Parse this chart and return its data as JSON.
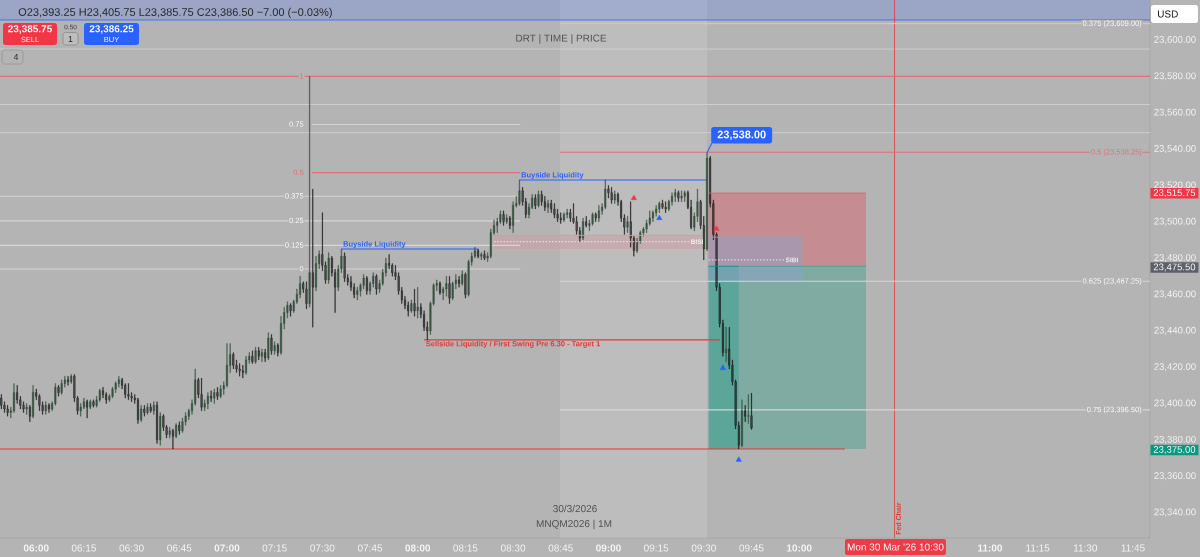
{
  "chart_data": {
    "type": "candlestick",
    "x": [
      5.8167,
      5.8333,
      5.85,
      5.8667,
      5.8833,
      5.9,
      5.9167,
      5.9333,
      5.95,
      5.9667,
      5.9833,
      6,
      6.0167,
      6.0333,
      6.05,
      6.0667,
      6.0833,
      6.1,
      6.1167,
      6.1333,
      6.15,
      6.1667,
      6.1833,
      6.2,
      6.2167,
      6.2333,
      6.25,
      6.2667,
      6.2833,
      6.3,
      6.3167,
      6.3333,
      6.35,
      6.3667,
      6.3833,
      6.4,
      6.4167,
      6.4333,
      6.45,
      6.4667,
      6.4833,
      6.5,
      6.5167,
      6.5333,
      6.55,
      6.5667,
      6.5833,
      6.6,
      6.6167,
      6.6333,
      6.65,
      6.6667,
      6.6833,
      6.7,
      6.7167,
      6.7333,
      6.75,
      6.7667,
      6.7833,
      6.8,
      6.8167,
      6.8333,
      6.85,
      6.8667,
      6.8833,
      6.9,
      6.9167,
      6.9333,
      6.95,
      6.9667,
      6.9833,
      7,
      7.0167,
      7.0333,
      7.05,
      7.0667,
      7.0833,
      7.1,
      7.1167,
      7.1333,
      7.15,
      7.1667,
      7.1833,
      7.2,
      7.2167,
      7.2333,
      7.25,
      7.2667,
      7.2833,
      7.3,
      7.3167,
      7.3333,
      7.35,
      7.3667,
      7.3833,
      7.4,
      7.4167,
      7.4333,
      7.45,
      7.4667,
      7.4833,
      7.5,
      7.5167,
      7.5333,
      7.55,
      7.5667,
      7.5833,
      7.6,
      7.6167,
      7.6333,
      7.65,
      7.6667,
      7.6833,
      7.7,
      7.7167,
      7.7333,
      7.75,
      7.7667,
      7.7833,
      7.8,
      7.8167,
      7.8333,
      7.85,
      7.8667,
      7.8833,
      7.9,
      7.9167,
      7.9333,
      7.95,
      7.9667,
      7.9833,
      8,
      8.0167,
      8.0333,
      8.05,
      8.0667,
      8.0833,
      8.1,
      8.1167,
      8.1333,
      8.15,
      8.1667,
      8.1833,
      8.2,
      8.2167,
      8.2333,
      8.25,
      8.2667,
      8.2833,
      8.3,
      8.3167,
      8.3333,
      8.35,
      8.3667,
      8.3833,
      8.4,
      8.4167,
      8.4333,
      8.45,
      8.4667,
      8.4833,
      8.5,
      8.5167,
      8.5333,
      8.55,
      8.5667,
      8.5833,
      8.6,
      8.6167,
      8.6333,
      8.65,
      8.6667,
      8.6833,
      8.7,
      8.7167,
      8.7333,
      8.75,
      8.7667,
      8.7833,
      8.8,
      8.8167,
      8.8333,
      8.85,
      8.8667,
      8.8833,
      8.9,
      8.9167,
      8.9333,
      8.95,
      8.9667,
      8.9833,
      9,
      9.0167,
      9.0333,
      9.05,
      9.0667,
      9.0833,
      9.1,
      9.1167,
      9.1333,
      9.15,
      9.1667,
      9.1833,
      9.2,
      9.2167,
      9.2333,
      9.25,
      9.2667,
      9.2833,
      9.3,
      9.3167,
      9.3333,
      9.35,
      9.3667,
      9.3833,
      9.4,
      9.4167,
      9.4333,
      9.45,
      9.4667,
      9.4833,
      9.5,
      9.5167,
      9.5333,
      9.55,
      9.5667,
      9.5833,
      9.6,
      9.6167,
      9.6333,
      9.65,
      9.6667,
      9.6833,
      9.7,
      9.7167,
      9.7333,
      9.75
    ],
    "ohlc": [
      [
        23403,
        23405,
        23397,
        23399
      ],
      [
        23399,
        23401,
        23395,
        23397
      ],
      [
        23397,
        23399,
        23393,
        23395
      ],
      [
        23395,
        23398,
        23392,
        23396
      ],
      [
        23396,
        23411,
        23395,
        23406
      ],
      [
        23406,
        23410,
        23400,
        23402
      ],
      [
        23402,
        23404,
        23397,
        23399
      ],
      [
        23399,
        23401,
        23395,
        23397
      ],
      [
        23397,
        23400,
        23394,
        23398
      ],
      [
        23398,
        23399,
        23390,
        23393
      ],
      [
        23393,
        23410,
        23392,
        23406
      ],
      [
        23406,
        23408,
        23402,
        23404
      ],
      [
        23404,
        23405,
        23396,
        23399
      ],
      [
        23399,
        23401,
        23394,
        23396
      ],
      [
        23396,
        23401,
        23394,
        23399
      ],
      [
        23399,
        23400,
        23395,
        23397
      ],
      [
        23397,
        23401,
        23396,
        23400
      ],
      [
        23400,
        23411,
        23399,
        23409
      ],
      [
        23409,
        23410,
        23404,
        23406
      ],
      [
        23406,
        23413,
        23405,
        23411
      ],
      [
        23411,
        23415,
        23409,
        23413
      ],
      [
        23413,
        23415,
        23410,
        23412
      ],
      [
        23412,
        23416,
        23411,
        23415
      ],
      [
        23415,
        23416,
        23401,
        23403
      ],
      [
        23403,
        23404,
        23394,
        23396
      ],
      [
        23396,
        23400,
        23393,
        23398
      ],
      [
        23398,
        23403,
        23397,
        23401
      ],
      [
        23401,
        23402,
        23392,
        23398
      ],
      [
        23398,
        23402,
        23397,
        23401
      ],
      [
        23401,
        23402,
        23398,
        23399
      ],
      [
        23399,
        23404,
        23398,
        23402
      ],
      [
        23402,
        23408,
        23401,
        23407
      ],
      [
        23407,
        23409,
        23403,
        23405
      ],
      [
        23405,
        23406,
        23400,
        23402
      ],
      [
        23402,
        23405,
        23401,
        23404
      ],
      [
        23404,
        23409,
        23403,
        23408
      ],
      [
        23408,
        23412,
        23406,
        23411
      ],
      [
        23411,
        23415,
        23409,
        23413
      ],
      [
        23413,
        23414,
        23408,
        23410
      ],
      [
        23410,
        23411,
        23403,
        23405
      ],
      [
        23405,
        23411,
        23402,
        23404
      ],
      [
        23404,
        23406,
        23401,
        23403
      ],
      [
        23403,
        23405,
        23400,
        23402
      ],
      [
        23402,
        23403,
        23389,
        23391
      ],
      [
        23391,
        23399,
        23390,
        23397
      ],
      [
        23397,
        23399,
        23393,
        23395
      ],
      [
        23395,
        23400,
        23394,
        23398
      ],
      [
        23398,
        23400,
        23395,
        23396
      ],
      [
        23396,
        23401,
        23394,
        23399
      ],
      [
        23399,
        23401,
        23378,
        23380
      ],
      [
        23380,
        23395,
        23377,
        23393
      ],
      [
        23393,
        23394,
        23385,
        23387
      ],
      [
        23387,
        23388,
        23381,
        23383
      ],
      [
        23383,
        23387,
        23381,
        23385
      ],
      [
        23385,
        23386,
        23375,
        23382
      ],
      [
        23382,
        23389,
        23381,
        23388
      ],
      [
        23388,
        23390,
        23383,
        23385
      ],
      [
        23385,
        23392,
        23384,
        23390
      ],
      [
        23390,
        23395,
        23388,
        23393
      ],
      [
        23393,
        23397,
        23391,
        23396
      ],
      [
        23396,
        23402,
        23394,
        23400
      ],
      [
        23400,
        23419,
        23399,
        23413
      ],
      [
        23413,
        23414,
        23403,
        23405
      ],
      [
        23405,
        23414,
        23396,
        23398
      ],
      [
        23398,
        23402,
        23396,
        23400
      ],
      [
        23400,
        23406,
        23397,
        23404
      ],
      [
        23404,
        23407,
        23401,
        23403
      ],
      [
        23403,
        23408,
        23400,
        23406
      ],
      [
        23406,
        23409,
        23402,
        23404
      ],
      [
        23404,
        23410,
        23403,
        23408
      ],
      [
        23408,
        23412,
        23405,
        23410
      ],
      [
        23410,
        23433,
        23409,
        23421
      ],
      [
        23421,
        23433,
        23417,
        23427
      ],
      [
        23427,
        23428,
        23419,
        23421
      ],
      [
        23421,
        23424,
        23417,
        23419
      ],
      [
        23419,
        23422,
        23415,
        23418
      ],
      [
        23418,
        23421,
        23414,
        23417
      ],
      [
        23417,
        23426,
        23416,
        23424
      ],
      [
        23424,
        23428,
        23422,
        23426
      ],
      [
        23426,
        23429,
        23422,
        23423
      ],
      [
        23423,
        23431,
        23422,
        23429
      ],
      [
        23429,
        23431,
        23424,
        23426
      ],
      [
        23426,
        23430,
        23423,
        23428
      ],
      [
        23428,
        23430,
        23423,
        23425
      ],
      [
        23425,
        23439,
        23424,
        23436
      ],
      [
        23436,
        23438,
        23427,
        23429
      ],
      [
        23429,
        23434,
        23427,
        23432
      ],
      [
        23432,
        23433,
        23426,
        23428
      ],
      [
        23428,
        23448,
        23427,
        23444
      ],
      [
        23444,
        23453,
        23441,
        23450
      ],
      [
        23450,
        23456,
        23447,
        23454
      ],
      [
        23454,
        23455,
        23448,
        23451
      ],
      [
        23451,
        23457,
        23450,
        23456
      ],
      [
        23456,
        23463,
        23455,
        23460
      ],
      [
        23460,
        23470,
        23458,
        23466
      ],
      [
        23466,
        23467,
        23461,
        23463
      ],
      [
        23463,
        23467,
        23452,
        23455
      ],
      [
        23455,
        23580,
        23453,
        23472
      ],
      [
        23472,
        23518,
        23442,
        23464
      ],
      [
        23464,
        23481,
        23462,
        23477
      ],
      [
        23477,
        23484,
        23474,
        23482
      ],
      [
        23482,
        23505,
        23473,
        23476
      ],
      [
        23476,
        23478,
        23466,
        23468
      ],
      [
        23468,
        23483,
        23466,
        23480
      ],
      [
        23480,
        23481,
        23470,
        23472
      ],
      [
        23472,
        23474,
        23450,
        23464
      ],
      [
        23464,
        23476,
        23462,
        23474
      ],
      [
        23474,
        23485,
        23472,
        23481
      ],
      [
        23481,
        23483,
        23467,
        23469
      ],
      [
        23469,
        23471,
        23465,
        23467
      ],
      [
        23467,
        23470,
        23462,
        23464
      ],
      [
        23464,
        23466,
        23458,
        23460
      ],
      [
        23460,
        23464,
        23457,
        23462
      ],
      [
        23462,
        23466,
        23459,
        23465
      ],
      [
        23465,
        23471,
        23463,
        23469
      ],
      [
        23469,
        23470,
        23460,
        23462
      ],
      [
        23462,
        23467,
        23460,
        23466
      ],
      [
        23466,
        23472,
        23464,
        23470
      ],
      [
        23470,
        23471,
        23460,
        23463
      ],
      [
        23463,
        23468,
        23461,
        23466
      ],
      [
        23466,
        23474,
        23465,
        23472
      ],
      [
        23472,
        23480,
        23470,
        23477
      ],
      [
        23477,
        23482,
        23474,
        23476
      ],
      [
        23476,
        23477,
        23470,
        23472
      ],
      [
        23472,
        23476,
        23468,
        23470
      ],
      [
        23470,
        23472,
        23460,
        23462
      ],
      [
        23462,
        23464,
        23455,
        23457
      ],
      [
        23457,
        23459,
        23452,
        23454
      ],
      [
        23454,
        23456,
        23448,
        23451
      ],
      [
        23451,
        23457,
        23450,
        23455
      ],
      [
        23455,
        23463,
        23448,
        23451
      ],
      [
        23451,
        23464,
        23447,
        23453
      ],
      [
        23453,
        23455,
        23447,
        23449
      ],
      [
        23449,
        23451,
        23440,
        23442
      ],
      [
        23442,
        23445,
        23435,
        23440
      ],
      [
        23440,
        23456,
        23438,
        23455
      ],
      [
        23455,
        23466,
        23454,
        23465
      ],
      [
        23465,
        23468,
        23462,
        23466
      ],
      [
        23466,
        23467,
        23460,
        23461
      ],
      [
        23461,
        23464,
        23457,
        23463
      ],
      [
        23463,
        23470,
        23459,
        23466
      ],
      [
        23466,
        23470,
        23455,
        23458
      ],
      [
        23458,
        23467,
        23457,
        23466
      ],
      [
        23466,
        23471,
        23463,
        23468
      ],
      [
        23468,
        23470,
        23464,
        23466
      ],
      [
        23466,
        23473,
        23465,
        23471
      ],
      [
        23471,
        23472,
        23458,
        23460
      ],
      [
        23460,
        23479,
        23459,
        23478
      ],
      [
        23478,
        23483,
        23476,
        23481
      ],
      [
        23481,
        23486,
        23480,
        23484
      ],
      [
        23484,
        23485,
        23480,
        23481
      ],
      [
        23481,
        23483,
        23479,
        23482
      ],
      [
        23482,
        23484,
        23479,
        23480
      ],
      [
        23480,
        23483,
        23478,
        23481
      ],
      [
        23481,
        23496,
        23480,
        23494
      ],
      [
        23494,
        23501,
        23493,
        23498
      ],
      [
        23498,
        23502,
        23494,
        23500
      ],
      [
        23500,
        23506,
        23499,
        23504
      ],
      [
        23504,
        23506,
        23498,
        23500
      ],
      [
        23500,
        23504,
        23499,
        23502
      ],
      [
        23502,
        23503,
        23496,
        23498
      ],
      [
        23498,
        23511,
        23494,
        23509
      ],
      [
        23509,
        23514,
        23508,
        23510
      ],
      [
        23510,
        23523,
        23509,
        23517
      ],
      [
        23517,
        23519,
        23509,
        23511
      ],
      [
        23511,
        23513,
        23502,
        23504
      ],
      [
        23504,
        23510,
        23502,
        23508
      ],
      [
        23508,
        23515,
        23507,
        23513
      ],
      [
        23513,
        23515,
        23507,
        23509
      ],
      [
        23509,
        23517,
        23508,
        23515
      ],
      [
        23515,
        23517,
        23509,
        23511
      ],
      [
        23511,
        23514,
        23506,
        23508
      ],
      [
        23508,
        23512,
        23505,
        23510
      ],
      [
        23510,
        23512,
        23505,
        23507
      ],
      [
        23507,
        23510,
        23502,
        23504
      ],
      [
        23504,
        23507,
        23500,
        23502
      ],
      [
        23502,
        23505,
        23499,
        23501
      ],
      [
        23501,
        23505,
        23500,
        23504
      ],
      [
        23504,
        23507,
        23502,
        23505
      ],
      [
        23505,
        23507,
        23500,
        23502
      ],
      [
        23502,
        23510,
        23499,
        23500
      ],
      [
        23500,
        23503,
        23493,
        23495
      ],
      [
        23495,
        23497,
        23489,
        23491
      ],
      [
        23491,
        23502,
        23490,
        23500
      ],
      [
        23500,
        23503,
        23497,
        23498
      ],
      [
        23498,
        23501,
        23495,
        23499
      ],
      [
        23499,
        23505,
        23498,
        23504
      ],
      [
        23504,
        23505,
        23500,
        23502
      ],
      [
        23502,
        23509,
        23500,
        23506
      ],
      [
        23506,
        23510,
        23504,
        23508
      ],
      [
        23508,
        23523,
        23507,
        23518
      ],
      [
        23518,
        23520,
        23513,
        23516
      ],
      [
        23516,
        23519,
        23510,
        23512
      ],
      [
        23512,
        23517,
        23510,
        23515
      ],
      [
        23515,
        23516,
        23509,
        23511
      ],
      [
        23511,
        23512,
        23500,
        23502
      ],
      [
        23502,
        23504,
        23493,
        23497
      ],
      [
        23497,
        23503,
        23494,
        23500
      ],
      [
        23500,
        23511,
        23486,
        23491
      ],
      [
        23491,
        23492,
        23481,
        23484
      ],
      [
        23484,
        23491,
        23483,
        23489
      ],
      [
        23489,
        23495,
        23488,
        23494
      ],
      [
        23494,
        23497,
        23492,
        23496
      ],
      [
        23496,
        23501,
        23494,
        23499
      ],
      [
        23499,
        23506,
        23498,
        23502
      ],
      [
        23502,
        23506,
        23500,
        23505
      ],
      [
        23505,
        23509,
        23503,
        23507
      ],
      [
        23507,
        23511,
        23505,
        23510
      ],
      [
        23510,
        23512,
        23507,
        23508
      ],
      [
        23508,
        23511,
        23505,
        23507
      ],
      [
        23507,
        23512,
        23506,
        23511
      ],
      [
        23511,
        23516,
        23509,
        23514
      ],
      [
        23514,
        23518,
        23511,
        23516
      ],
      [
        23516,
        23517,
        23511,
        23513
      ],
      [
        23513,
        23517,
        23511,
        23514
      ],
      [
        23514,
        23517,
        23511,
        23516
      ],
      [
        23516,
        23517,
        23507,
        23508
      ],
      [
        23508,
        23512,
        23496,
        23497
      ],
      [
        23497,
        23505,
        23495,
        23503
      ],
      [
        23503,
        23518,
        23500,
        23511
      ],
      [
        23511,
        23512,
        23496,
        23498
      ],
      [
        23498,
        23503,
        23479,
        23485
      ],
      [
        23485,
        23538,
        23484,
        23535
      ],
      [
        23535,
        23536,
        23508,
        23510
      ],
      [
        23510,
        23512,
        23490,
        23493
      ],
      [
        23493,
        23494,
        23462,
        23464
      ],
      [
        23464,
        23466,
        23442,
        23444
      ],
      [
        23444,
        23446,
        23426,
        23428
      ],
      [
        23428,
        23442,
        23423,
        23430
      ],
      [
        23430,
        23442,
        23419,
        23421
      ],
      [
        23421,
        23424,
        23410,
        23412
      ],
      [
        23412,
        23413,
        23386,
        23388
      ],
      [
        23388,
        23390,
        23375,
        23377
      ],
      [
        23377,
        23402,
        23376,
        23396
      ],
      [
        23396,
        23399,
        23390,
        23393
      ],
      [
        23393,
        23405,
        23389,
        23393.25
      ],
      [
        23393.25,
        23405.75,
        23385.75,
        23386.5
      ]
    ],
    "xlim": [
      5.81,
      11.839
    ],
    "ylim": [
      23326,
      23622
    ],
    "xticks": [
      {
        "value": 6,
        "label": "06:00"
      },
      {
        "value": 6.25,
        "label": "06:15"
      },
      {
        "value": 6.5,
        "label": "06:30"
      },
      {
        "value": 6.75,
        "label": "06:45"
      },
      {
        "value": 7,
        "label": "07:00"
      },
      {
        "value": 7.25,
        "label": "07:15"
      },
      {
        "value": 7.5,
        "label": "07:30"
      },
      {
        "value": 7.75,
        "label": "07:45"
      },
      {
        "value": 8,
        "label": "08:00"
      },
      {
        "value": 8.25,
        "label": "08:15"
      },
      {
        "value": 8.5,
        "label": "08:30"
      },
      {
        "value": 8.75,
        "label": "08:45"
      },
      {
        "value": 9,
        "label": "09:00"
      },
      {
        "value": 9.25,
        "label": "09:15"
      },
      {
        "value": 9.5,
        "label": "09:30"
      },
      {
        "value": 9.75,
        "label": "09:45"
      },
      {
        "value": 10,
        "label": "10:00"
      },
      {
        "value": 11,
        "label": "11:00"
      },
      {
        "value": 11.25,
        "label": "11:15"
      },
      {
        "value": 11.5,
        "label": "11:30"
      },
      {
        "value": 11.75,
        "label": "11:45"
      }
    ],
    "yticks": [
      {
        "value": 23340,
        "label": "23,340.00"
      },
      {
        "value": 23360,
        "label": "23,360.00"
      },
      {
        "value": 23380,
        "label": "23,380.00"
      },
      {
        "value": 23400,
        "label": "23,400.00"
      },
      {
        "value": 23420,
        "label": "23,420.00"
      },
      {
        "value": 23440,
        "label": "23,440.00"
      },
      {
        "value": 23460,
        "label": "23,460.00"
      },
      {
        "value": 23480,
        "label": "23,480.00"
      },
      {
        "value": 23500,
        "label": "23,500.00"
      },
      {
        "value": 23520,
        "label": "23,520.00"
      },
      {
        "value": 23540,
        "label": "23,540.00"
      },
      {
        "value": 23560,
        "label": "23,560.00"
      },
      {
        "value": 23580,
        "label": "23,580.00"
      },
      {
        "value": 23600,
        "label": "23,600.00"
      }
    ],
    "series": [
      {
        "type": "line",
        "color": "#d9727c",
        "x": [
          5.81,
          11.839
        ],
        "values": [
          23580,
          23580
        ]
      },
      {
        "type": "line",
        "color": "#d6d6d6",
        "x": [
          7.445,
          8.537
        ],
        "values": [
          23553.5,
          23553.5
        ]
      },
      {
        "type": "line",
        "color": "#d9727c",
        "x": [
          7.445,
          8.537
        ],
        "values": [
          23527,
          23527
        ]
      },
      {
        "type": "line",
        "color": "#d6d6d6",
        "x": [
          5.81,
          8.537
        ],
        "values": [
          23514,
          23514
        ]
      },
      {
        "type": "line",
        "color": "#d6d6d6",
        "x": [
          5.81,
          8.537
        ],
        "values": [
          23500.5,
          23500.5
        ]
      },
      {
        "type": "line",
        "color": "#d6d6d6",
        "x": [
          5.81,
          8.537
        ],
        "values": [
          23487,
          23487
        ]
      },
      {
        "type": "line",
        "color": "#d6d6d6",
        "x": [
          5.81,
          8.537
        ],
        "values": [
          23474,
          23474
        ]
      },
      {
        "type": "line",
        "color": "#d8c8a8",
        "x": [
          8.746,
          11.839
        ],
        "values": [
          23609,
          23609
        ]
      },
      {
        "type": "line",
        "color": "#d9727c",
        "x": [
          8.746,
          11.839
        ],
        "values": [
          23538.25,
          23538.25
        ]
      },
      {
        "type": "line",
        "color": "#d6d6d6",
        "x": [
          8.746,
          11.839
        ],
        "values": [
          23467.25,
          23467.25
        ]
      },
      {
        "type": "line",
        "color": "#d6d6d6",
        "x": [
          8.746,
          11.839
        ],
        "values": [
          23396.5,
          23396.5
        ]
      },
      {
        "type": "line",
        "name": "Buyside Liquidity",
        "color": "#2962ff",
        "x": [
          7.6,
          8.3167
        ],
        "values": [
          23485,
          23485
        ]
      },
      {
        "type": "line",
        "name": "Buyside Liquidity",
        "color": "#2962ff",
        "x": [
          8.5333,
          9.5167
        ],
        "values": [
          23523,
          23523
        ]
      },
      {
        "type": "line",
        "name": "Sellside Liquidity / First Swing Pre 6.30 - Target 1",
        "color": "#e53935",
        "x": [
          8.0333,
          9.5833
        ],
        "values": [
          23435,
          23435
        ]
      },
      {
        "type": "line",
        "color": "#e53935",
        "x": [
          5.81,
          10.24
        ],
        "values": [
          23375,
          23375
        ]
      },
      {
        "type": "line",
        "color": "#d6666e",
        "x": [
          9.525,
          10.35
        ],
        "values": [
          23515.75,
          23515.75
        ],
        "lower": [
          23475.5,
          23475.5
        ],
        "upper": [
          23515.75,
          23515.75
        ]
      },
      {
        "type": "line",
        "color": "#4aa292",
        "x": [
          9.6833,
          10.35
        ],
        "values": [
          23475.5,
          23475.5
        ],
        "lower": [
          23375,
          23375
        ],
        "upper": [
          23475.5,
          23475.5
        ]
      },
      {
        "type": "line",
        "color": "#02967e",
        "x": [
          9.525,
          9.6833
        ],
        "values": [
          23475.5,
          23475.5
        ],
        "lower": [
          23375,
          23375
        ],
        "upper": [
          23475.5,
          23475.5
        ]
      },
      {
        "type": "line",
        "color": "#d29ca2",
        "x": [
          8.4,
          9.49
        ],
        "values": [
          23492.5,
          23492.5
        ],
        "lower": [
          23485,
          23485
        ],
        "upper": [
          23492.5,
          23492.5
        ]
      },
      {
        "type": "line",
        "name": "BISI",
        "color": "#f2f2f2",
        "x": [
          8.4,
          9.4222
        ],
        "values": [
          23489,
          23489
        ],
        "line_style": "dotted"
      },
      {
        "type": "line",
        "color": "#8ba1c9",
        "x": [
          9.525,
          10.0167
        ],
        "values": [
          23491.5,
          23491.5
        ],
        "lower": [
          23466.75,
          23466.75
        ],
        "upper": [
          23491.5,
          23491.5
        ]
      },
      {
        "type": "line",
        "name": "SIBI",
        "color": "#f2f2f2",
        "x": [
          9.525,
          9.9202
        ],
        "values": [
          23479,
          23479
        ],
        "line_style": "dotted"
      },
      {
        "type": "scatter",
        "color": "#f23645",
        "marker": "triangle",
        "x": [
          9.1333,
          9.5667
        ],
        "values": [
          23513,
          23496
        ]
      },
      {
        "type": "scatter",
        "color": "#2962ff",
        "marker": "triangle",
        "x": [
          9.2667,
          9.6,
          9.6833
        ],
        "values": [
          23502,
          23419.5,
          23369
        ]
      }
    ],
    "bands": [
      {
        "axis": "x",
        "from": 8.746,
        "to": 9.5167,
        "color": "#d3d3d3"
      },
      {
        "axis": "y",
        "from": 23611,
        "to": 23622,
        "color": "#6287f1"
      }
    ],
    "ref_lines": [
      {
        "axis": "y",
        "value": 23611,
        "color": "#2962ff"
      },
      {
        "axis": "y",
        "value": 23595,
        "color": "#d4d4d4"
      },
      {
        "axis": "y",
        "value": 23564.5,
        "color": "#d4d4d4"
      },
      {
        "axis": "y",
        "value": 23549,
        "color": "#d4d4d4"
      },
      {
        "axis": "x",
        "value": 10.5,
        "label": "Fed Chair",
        "color": "#e53935"
      }
    ],
    "annotations": [
      "O23,393.25 H23,405.75 L23,385.75 C23,386.50 −7.00 (−0.03%)",
      "23,385.75",
      "SELL",
      "0.50",
      "1",
      "23,386.25",
      "BUY",
      "4",
      "USD",
      "DRT | TIME | PRICE",
      "30/3/2026",
      "MNQM2026 | 1M",
      "Mon 30 Mar '26  10:30",
      "23,515.75",
      "23,475.50",
      "23,375.00",
      {
        "text": "1",
        "x": 7.445,
        "y": 23580
      },
      {
        "text": "0.75",
        "x": 7.445,
        "y": 23553.5
      },
      {
        "text": "0.5",
        "x": 7.445,
        "y": 23527
      },
      {
        "text": "0.375",
        "x": 7.445,
        "y": 23514
      },
      {
        "text": "0.25",
        "x": 7.445,
        "y": 23500.5
      },
      {
        "text": "0.125",
        "x": 7.445,
        "y": 23487
      },
      {
        "text": "0",
        "x": 7.445,
        "y": 23474
      },
      {
        "text": "0.375 (23,609.00)",
        "x": 11.839,
        "y": 23609
      },
      {
        "text": "0.5 (23,538.25)",
        "x": 11.839,
        "y": 23538.25
      },
      {
        "text": "0.625 (23,467.25)",
        "x": 11.839,
        "y": 23467.25
      },
      {
        "text": "0.75 (23,396.50)",
        "x": 11.839,
        "y": 23396.5
      },
      {
        "text": "23,538.00",
        "x": 9.5167,
        "y": 23538
      }
    ]
  }
}
